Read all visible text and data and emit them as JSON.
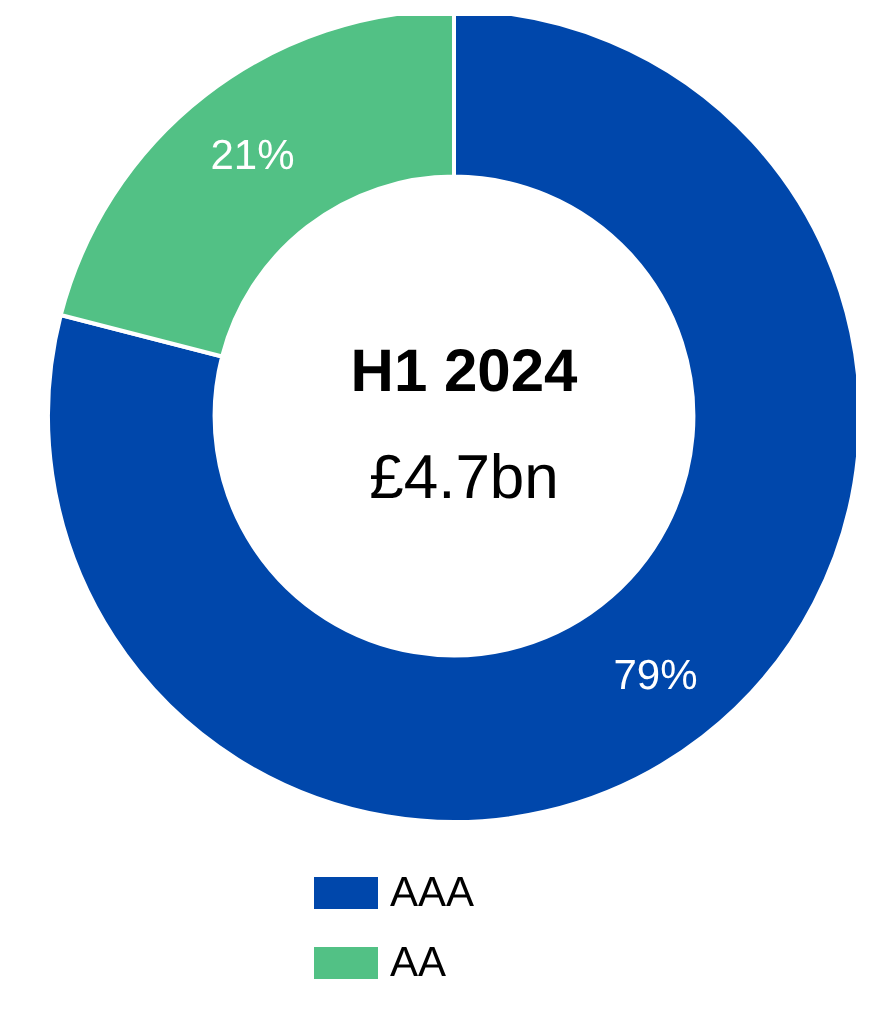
{
  "chart_data": {
    "type": "donut",
    "title": "H1 2024",
    "subtitle": "£4.7bn",
    "categories": [
      "AAA",
      "AA"
    ],
    "values": [
      79,
      21
    ],
    "colors": [
      "#0047ab",
      "#52c185"
    ],
    "value_labels": [
      "79%",
      "21%"
    ],
    "legend": "bottom"
  }
}
